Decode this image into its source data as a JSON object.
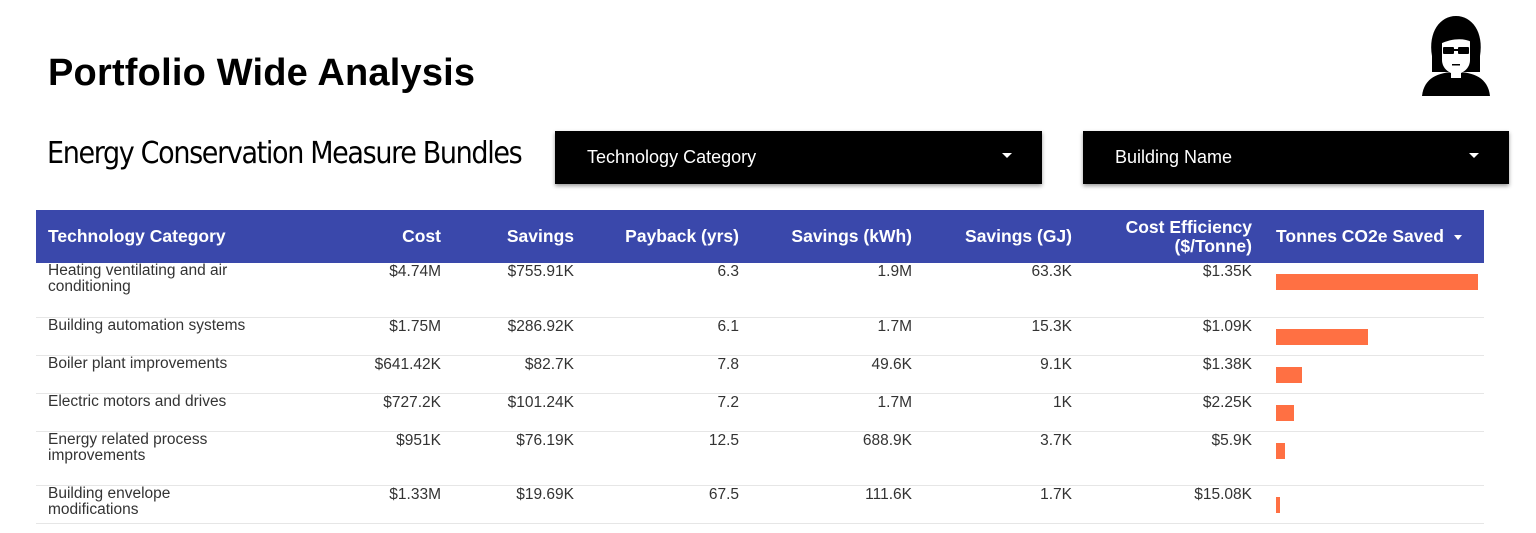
{
  "header": {
    "title": "Portfolio Wide Analysis",
    "section_title": "Energy Conservation Measure Bundles"
  },
  "filters": {
    "technology_category": "Technology Category",
    "building_name": "Building Name"
  },
  "table": {
    "columns": [
      "Technology Category",
      "Cost",
      "Savings",
      "Payback (yrs)",
      "Savings (kWh)",
      "Savings (GJ)",
      "Cost Efficiency ($/Tonne)",
      "Tonnes CO2e Saved"
    ],
    "column_cost_efficiency_line1": "Cost Efficiency",
    "column_cost_efficiency_line2": "($/Tonne)",
    "rows": [
      {
        "category": "Heating ventilating and air conditioning",
        "cost": "$4.74M",
        "savings": "$755.91K",
        "payback": "6.3",
        "kwh": "1.9M",
        "gj": "63.3K",
        "efficiency": "$1.35K",
        "co2_fraction": 1.0
      },
      {
        "category": "Building automation systems",
        "cost": "$1.75M",
        "savings": "$286.92K",
        "payback": "6.1",
        "kwh": "1.7M",
        "gj": "15.3K",
        "efficiency": "$1.09K",
        "co2_fraction": 0.455
      },
      {
        "category": "Boiler plant improvements",
        "cost": "$641.42K",
        "savings": "$82.7K",
        "payback": "7.8",
        "kwh": "49.6K",
        "gj": "9.1K",
        "efficiency": "$1.38K",
        "co2_fraction": 0.13
      },
      {
        "category": "Electric motors and drives",
        "cost": "$727.2K",
        "savings": "$101.24K",
        "payback": "7.2",
        "kwh": "1.7M",
        "gj": "1K",
        "efficiency": "$2.25K",
        "co2_fraction": 0.09
      },
      {
        "category": "Energy related process improvements",
        "cost": "$951K",
        "savings": "$76.19K",
        "payback": "12.5",
        "kwh": "688.9K",
        "gj": "3.7K",
        "efficiency": "$5.9K",
        "co2_fraction": 0.045
      },
      {
        "category": "Building envelope modifications",
        "cost": "$1.33M",
        "savings": "$19.69K",
        "payback": "67.5",
        "kwh": "111.6K",
        "gj": "1.7K",
        "efficiency": "$15.08K",
        "co2_fraction": 0.018
      }
    ]
  },
  "colors": {
    "header_bg": "#3a48ab",
    "bar": "#ff7043",
    "dropdown_bg": "#000000"
  },
  "icons": {
    "avatar": "woman-with-glasses-avatar-icon",
    "dropdown_caret": "caret-down-icon",
    "sort": "sort-desc-icon"
  }
}
